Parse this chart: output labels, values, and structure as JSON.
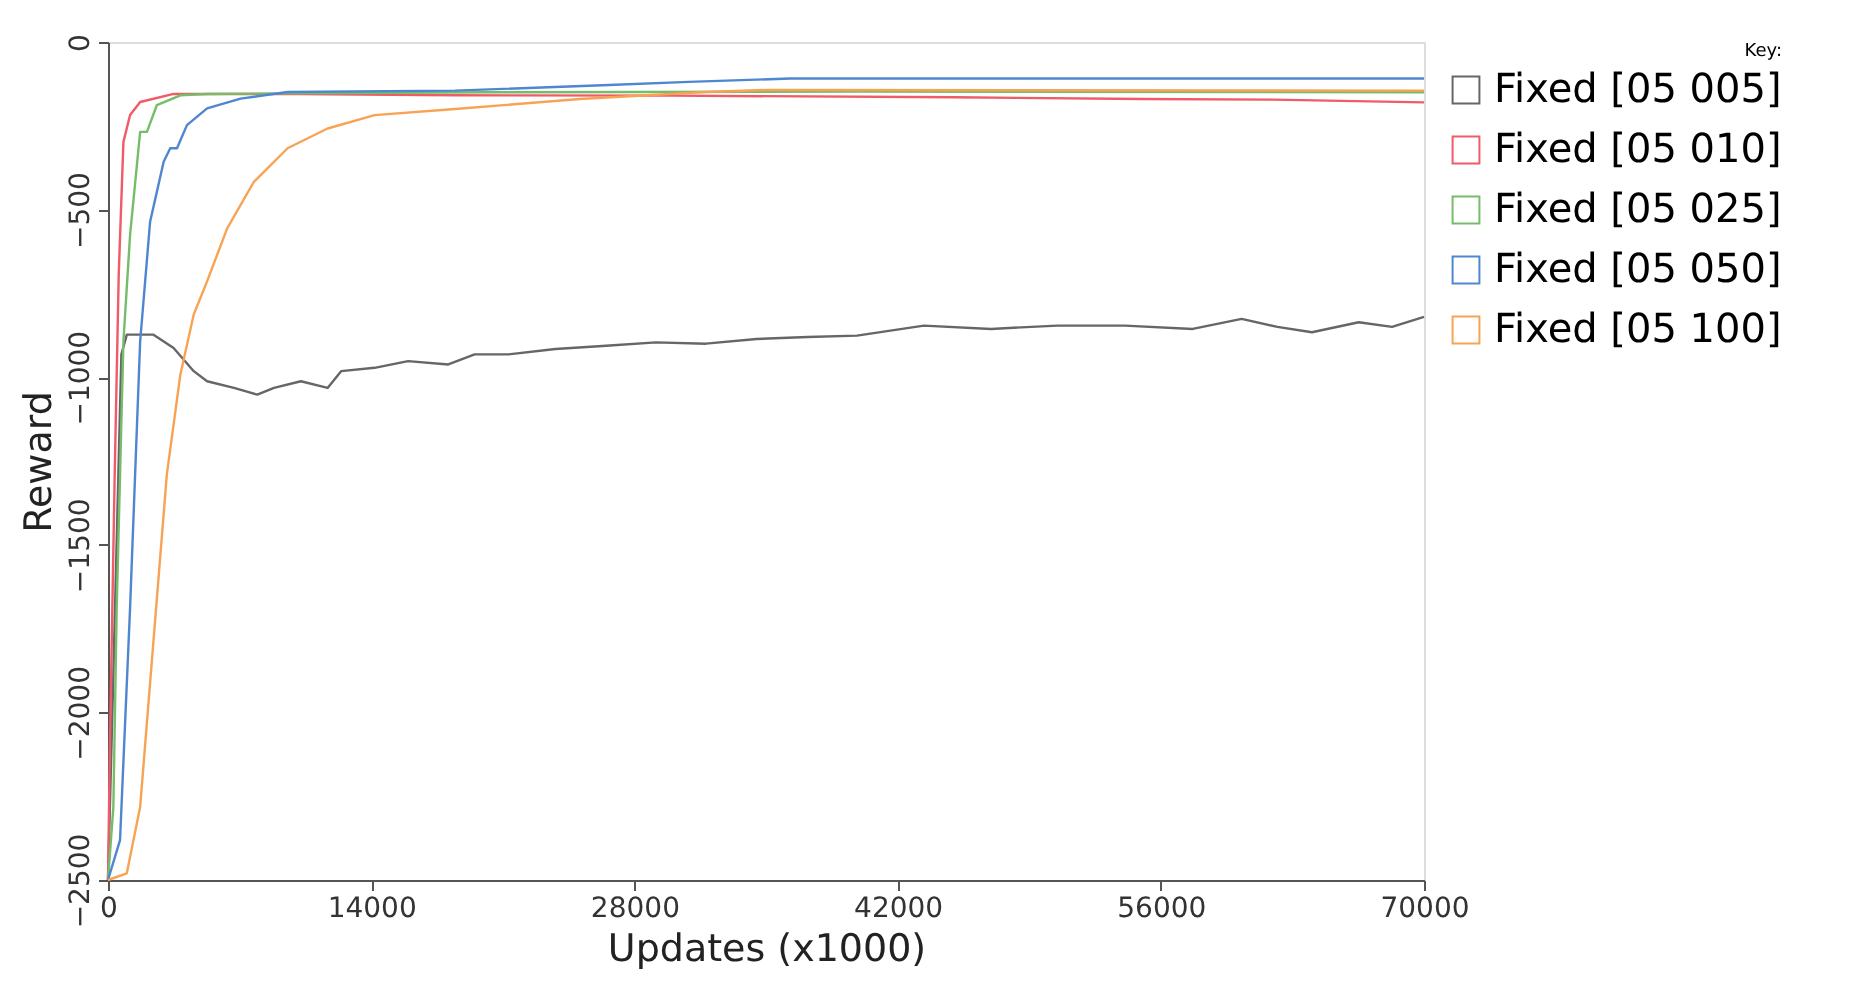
{
  "chart_data": {
    "type": "line",
    "xlabel": "Updates (x1000)",
    "ylabel": "Reward",
    "legend_title": "Key:",
    "legend": "right",
    "grid": false,
    "marker": "none",
    "line_style": "solid",
    "xlim": [
      0,
      70000
    ],
    "xticks": [
      0,
      14000,
      28000,
      42000,
      56000,
      70000
    ],
    "ylim": [
      -2500,
      0
    ],
    "yticks": [
      -2500,
      -2000,
      -1500,
      -1000,
      -500,
      0
    ],
    "series": [
      {
        "name": "Fixed [05 005]",
        "color": "#666666",
        "x": [
          0,
          285,
          712,
          1000,
          1710,
          2420,
          3490,
          4560,
          5270,
          6700,
          7940,
          8830,
          10260,
          11680,
          12400,
          14180,
          15960,
          18100,
          19500,
          21300,
          23800,
          26500,
          29150,
          31800,
          34500,
          37200,
          39840,
          43400,
          46970,
          50500,
          54100,
          57700,
          60300,
          62200,
          64040,
          66530,
          68300,
          70000
        ],
        "values": [
          -2500,
          -1885,
          -932,
          -873,
          -873,
          -873,
          -913,
          -982,
          -1012,
          -1032,
          -1052,
          -1032,
          -1012,
          -1032,
          -982,
          -972,
          -952,
          -962,
          -932,
          -932,
          -916,
          -906,
          -896,
          -900,
          -886,
          -880,
          -876,
          -846,
          -856,
          -846,
          -846,
          -856,
          -826,
          -850,
          -866,
          -836,
          -850,
          -820
        ]
      },
      {
        "name": "Fixed [05 010]",
        "color": "#ef5b67",
        "x": [
          0,
          107,
          356,
          570,
          820,
          1175,
          1710,
          3490,
          10000,
          18460,
          30000,
          45000,
          55000,
          62000,
          70000
        ],
        "values": [
          -2500,
          -2083,
          -1290,
          -694,
          -298,
          -218,
          -179,
          -155,
          -155,
          -159,
          -160,
          -165,
          -170,
          -172,
          -180
        ]
      },
      {
        "name": "Fixed [05 025]",
        "color": "#76bd6a",
        "x": [
          0,
          285,
          463,
          820,
          1175,
          1710,
          2070,
          2600,
          3850,
          5270,
          20000,
          40000,
          70000
        ],
        "values": [
          -2500,
          -2282,
          -1687,
          -893,
          -575,
          -268,
          -268,
          -188,
          -159,
          -155,
          -150,
          -148,
          -150
        ]
      },
      {
        "name": "Fixed [05 050]",
        "color": "#4f86d0",
        "x": [
          0,
          640,
          1175,
          1710,
          2240,
          2960,
          3310,
          3670,
          4200,
          5270,
          7050,
          9550,
          18460,
          26300,
          30900,
          36300,
          70000
        ],
        "values": [
          -2500,
          -2381,
          -1687,
          -893,
          -536,
          -357,
          -317,
          -317,
          -248,
          -198,
          -169,
          -149,
          -145,
          -129,
          -119,
          -109,
          -109
        ]
      },
      {
        "name": "Fixed [05 100]",
        "color": "#f8a354",
        "x": [
          0,
          1000,
          1710,
          2420,
          3130,
          3850,
          4560,
          5270,
          6340,
          7760,
          9550,
          11680,
          14180,
          18460,
          25100,
          31800,
          35100,
          70000
        ],
        "values": [
          -2500,
          -2480,
          -2282,
          -1786,
          -1290,
          -992,
          -813,
          -714,
          -556,
          -417,
          -317,
          -258,
          -218,
          -200,
          -170,
          -149,
          -143,
          -145
        ]
      }
    ]
  }
}
